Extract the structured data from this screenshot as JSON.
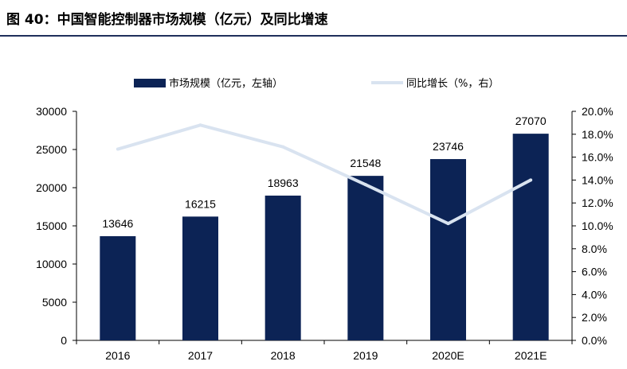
{
  "title": "图 40：中国智能控制器市场规模（亿元）及同比增速",
  "colors": {
    "bar": "#0c2355",
    "line": "#d9e3f0",
    "title_rule": "#1f2f5b"
  },
  "chart_data": {
    "type": "bar",
    "categories": [
      "2016",
      "2017",
      "2018",
      "2019",
      "2020E",
      "2021E"
    ],
    "series": [
      {
        "name": "市场规模（亿元，左轴）",
        "kind": "bar",
        "axis": "left",
        "values": [
          13646,
          16215,
          18963,
          21548,
          23746,
          27070
        ]
      },
      {
        "name": "同比增长（%，右）",
        "kind": "line",
        "axis": "right",
        "values": [
          16.7,
          18.8,
          16.9,
          13.6,
          10.2,
          14.0
        ]
      }
    ],
    "left_axis": {
      "ylim": [
        0,
        30000
      ],
      "ticks": [
        "0",
        "5000",
        "10000",
        "15000",
        "20000",
        "25000",
        "30000"
      ]
    },
    "right_axis": {
      "ylim": [
        0,
        20
      ],
      "ticks": [
        "0.0%",
        "2.0%",
        "4.0%",
        "6.0%",
        "8.0%",
        "10.0%",
        "12.0%",
        "14.0%",
        "16.0%",
        "18.0%",
        "20.0%"
      ]
    },
    "legend_position": "top",
    "grid": false
  }
}
